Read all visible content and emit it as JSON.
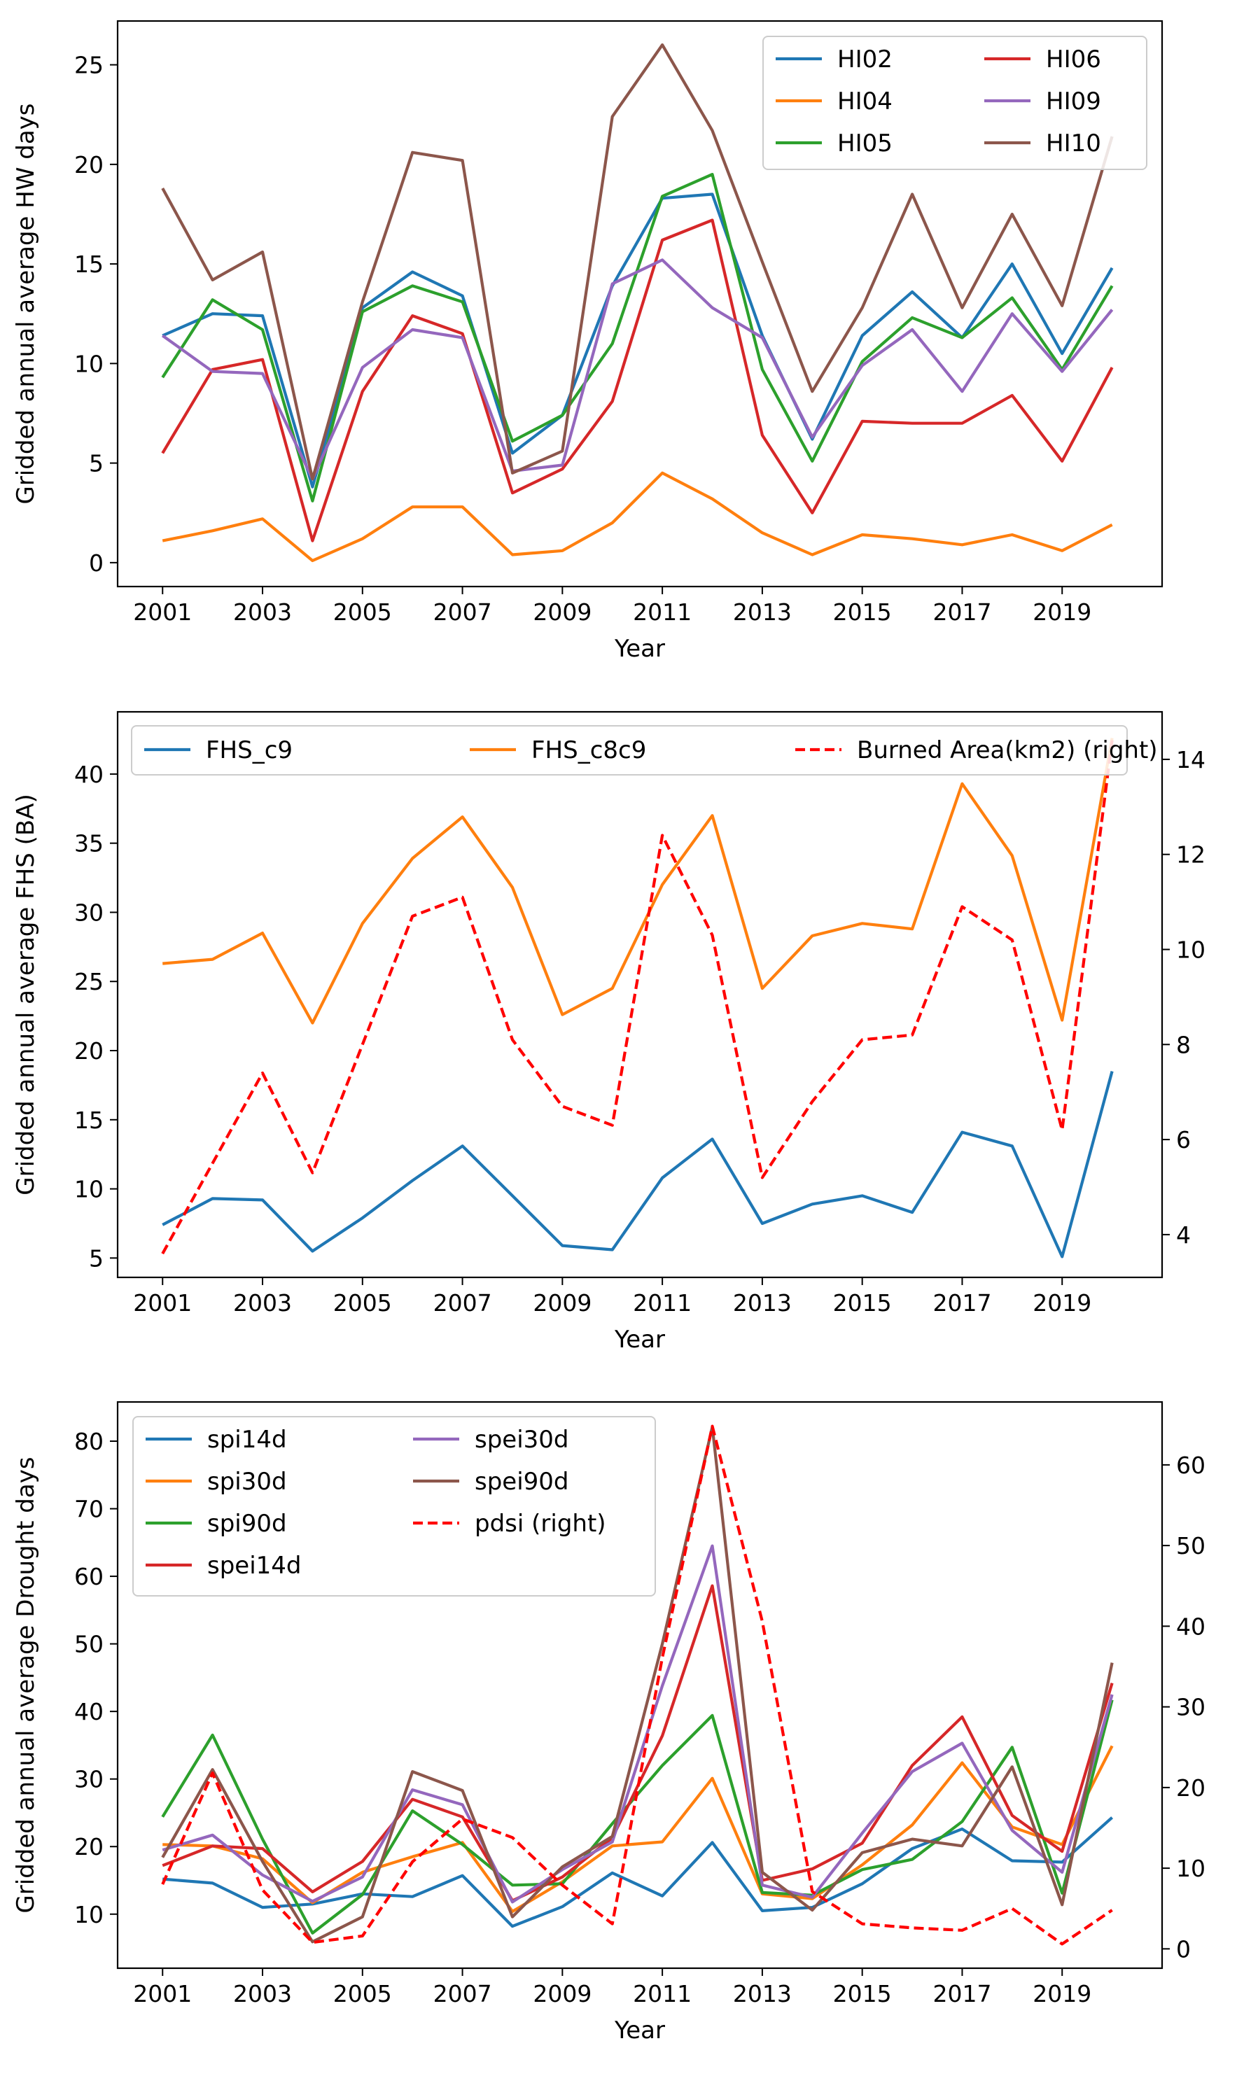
{
  "chart_data": [
    {
      "type": "line",
      "xlabel": "Year",
      "ylabel": "Gridded annual average HW days",
      "x": [
        2001,
        2002,
        2003,
        2004,
        2005,
        2006,
        2007,
        2008,
        2009,
        2010,
        2011,
        2012,
        2013,
        2014,
        2015,
        2016,
        2017,
        2018,
        2019,
        2020
      ],
      "xticks": [
        2001,
        2003,
        2005,
        2007,
        2009,
        2011,
        2013,
        2015,
        2017,
        2019
      ],
      "xlim": [
        2000.1,
        2021.0
      ],
      "ylim": [
        -1.2,
        27.2
      ],
      "yticks": [
        0,
        5,
        10,
        15,
        20,
        25
      ],
      "legend": "upper-right, 2 columns",
      "series": [
        {
          "name": "HI02",
          "color": "#1f77b4",
          "values": [
            11.4,
            12.5,
            12.4,
            3.8,
            12.8,
            14.6,
            13.4,
            5.5,
            7.4,
            13.9,
            18.3,
            18.5,
            11.4,
            6.2,
            11.4,
            13.6,
            11.3,
            15.0,
            10.5,
            14.8
          ]
        },
        {
          "name": "HI04",
          "color": "#ff7f0e",
          "values": [
            1.1,
            1.6,
            2.2,
            0.1,
            1.2,
            2.8,
            2.8,
            0.4,
            0.6,
            2.0,
            4.5,
            3.2,
            1.5,
            0.4,
            1.4,
            1.2,
            0.9,
            1.4,
            0.6,
            1.9
          ]
        },
        {
          "name": "HI05",
          "color": "#2ca02c",
          "values": [
            9.3,
            13.2,
            11.7,
            3.1,
            12.6,
            13.9,
            13.1,
            6.1,
            7.4,
            11.0,
            18.4,
            19.5,
            9.7,
            5.1,
            10.1,
            12.3,
            11.3,
            13.3,
            9.7,
            13.9
          ]
        },
        {
          "name": "HI06",
          "color": "#d62728",
          "values": [
            5.5,
            9.7,
            10.2,
            1.1,
            8.6,
            12.4,
            11.5,
            3.5,
            4.7,
            8.1,
            16.2,
            17.2,
            6.4,
            2.5,
            7.1,
            7.0,
            7.0,
            8.4,
            5.1,
            9.8
          ]
        },
        {
          "name": "HI09",
          "color": "#9467bd",
          "values": [
            11.4,
            9.6,
            9.5,
            4.2,
            9.8,
            11.7,
            11.3,
            4.6,
            4.9,
            14.0,
            15.2,
            12.8,
            11.3,
            6.3,
            9.9,
            11.7,
            8.6,
            12.5,
            9.6,
            12.7
          ]
        },
        {
          "name": "HI10",
          "color": "#8c564b",
          "values": [
            18.8,
            14.2,
            15.6,
            4.2,
            13.1,
            20.6,
            20.2,
            4.5,
            5.6,
            22.4,
            26.0,
            21.7,
            15.1,
            8.6,
            12.8,
            18.5,
            12.8,
            17.5,
            12.9,
            21.4
          ]
        }
      ]
    },
    {
      "type": "line",
      "xlabel": "Year",
      "ylabel": "Gridded annual average FHS (BA)",
      "x": [
        2001,
        2002,
        2003,
        2004,
        2005,
        2006,
        2007,
        2008,
        2009,
        2010,
        2011,
        2012,
        2013,
        2014,
        2015,
        2016,
        2017,
        2018,
        2019,
        2020
      ],
      "xticks": [
        2001,
        2003,
        2005,
        2007,
        2009,
        2011,
        2013,
        2015,
        2017,
        2019
      ],
      "xlim": [
        2000.1,
        2021.0
      ],
      "ylim": [
        3.6,
        44.5
      ],
      "yticks": [
        5,
        10,
        15,
        20,
        25,
        30,
        35,
        40
      ],
      "y2lim": [
        3.1,
        15.0
      ],
      "y2ticks": [
        4,
        6,
        8,
        10,
        12,
        14
      ],
      "legend": "top, 3 columns",
      "series": [
        {
          "name": "FHS_c9",
          "color": "#1f77b4",
          "axis": "left",
          "values": [
            7.4,
            9.3,
            9.2,
            5.5,
            7.9,
            10.6,
            13.1,
            9.5,
            5.9,
            5.6,
            10.8,
            13.6,
            7.5,
            8.9,
            9.5,
            8.3,
            14.1,
            13.1,
            5.1,
            18.5
          ]
        },
        {
          "name": "FHS_c8c9",
          "color": "#ff7f0e",
          "axis": "left",
          "values": [
            26.3,
            26.6,
            28.5,
            22.0,
            29.2,
            33.9,
            36.9,
            31.8,
            22.6,
            24.5,
            32.0,
            37.0,
            24.5,
            28.3,
            29.2,
            28.8,
            39.3,
            34.1,
            22.2,
            42.6
          ]
        },
        {
          "name": "Burned Area(km2) (right)",
          "color": "#ff0000",
          "dash": true,
          "axis": "right",
          "values": [
            3.6,
            5.5,
            7.4,
            5.3,
            8.0,
            10.7,
            11.1,
            8.1,
            6.7,
            6.3,
            12.4,
            10.3,
            5.2,
            6.8,
            8.1,
            8.2,
            10.9,
            10.2,
            6.2,
            14.4
          ]
        }
      ]
    },
    {
      "type": "line",
      "xlabel": "Year",
      "ylabel": "Gridded annual average Drought days",
      "x": [
        2001,
        2002,
        2003,
        2004,
        2005,
        2006,
        2007,
        2008,
        2009,
        2010,
        2011,
        2012,
        2013,
        2014,
        2015,
        2016,
        2017,
        2018,
        2019,
        2020
      ],
      "xticks": [
        2001,
        2003,
        2005,
        2007,
        2009,
        2011,
        2013,
        2015,
        2017,
        2019
      ],
      "xlim": [
        2000.1,
        2021.0
      ],
      "ylim": [
        2.0,
        85.8
      ],
      "yticks": [
        10,
        20,
        30,
        40,
        50,
        60,
        70,
        80
      ],
      "y2lim": [
        -2.4,
        67.8
      ],
      "y2ticks": [
        0,
        10,
        20,
        30,
        40,
        50,
        60
      ],
      "legend": "upper-left, 2 columns",
      "series": [
        {
          "name": "spi14d",
          "color": "#1f77b4",
          "axis": "left",
          "values": [
            15.2,
            14.6,
            11.0,
            11.5,
            13.0,
            12.6,
            15.7,
            8.2,
            11.1,
            16.1,
            12.7,
            20.6,
            10.5,
            11.0,
            14.5,
            19.7,
            22.6,
            17.9,
            17.7,
            24.3
          ]
        },
        {
          "name": "spi30d",
          "color": "#ff7f0e",
          "axis": "left",
          "values": [
            20.3,
            20.1,
            18.2,
            11.7,
            16.2,
            18.5,
            20.6,
            10.4,
            14.8,
            20.1,
            20.7,
            30.1,
            13.0,
            12.3,
            17.3,
            23.2,
            32.4,
            22.9,
            20.3,
            34.9
          ]
        },
        {
          "name": "spi90d",
          "color": "#2ca02c",
          "axis": "left",
          "values": [
            24.4,
            36.5,
            21.1,
            7.2,
            12.9,
            25.3,
            20.3,
            14.3,
            14.5,
            23.4,
            32.0,
            39.4,
            13.2,
            12.8,
            16.6,
            18.1,
            23.7,
            34.7,
            13.1,
            41.7
          ]
        },
        {
          "name": "spei14d",
          "color": "#d62728",
          "axis": "left",
          "values": [
            17.2,
            20.1,
            19.7,
            13.3,
            17.8,
            27.0,
            24.4,
            12.0,
            15.5,
            21.3,
            36.4,
            58.6,
            15.0,
            16.7,
            20.5,
            32.0,
            39.2,
            24.6,
            19.3,
            44.2
          ]
        },
        {
          "name": "spei30d",
          "color": "#9467bd",
          "axis": "left",
          "values": [
            19.5,
            21.7,
            15.8,
            11.9,
            15.5,
            28.4,
            26.2,
            11.8,
            16.6,
            20.7,
            43.8,
            64.5,
            14.3,
            12.5,
            22.0,
            31.1,
            35.3,
            22.4,
            16.2,
            42.5
          ]
        },
        {
          "name": "spei90d",
          "color": "#8c564b",
          "axis": "left",
          "values": [
            18.4,
            31.4,
            17.8,
            5.9,
            9.6,
            31.1,
            28.3,
            9.6,
            17.0,
            21.5,
            50.0,
            82.1,
            16.2,
            10.6,
            19.1,
            21.1,
            20.1,
            31.8,
            11.4,
            47.2
          ]
        },
        {
          "name": "pdsi (right)",
          "color": "#ff0000",
          "dash": true,
          "axis": "right",
          "values": [
            8.0,
            21.8,
            7.3,
            0.8,
            1.6,
            10.8,
            16.1,
            13.8,
            7.9,
            3.1,
            36.1,
            64.8,
            40.6,
            7.1,
            3.1,
            2.6,
            2.3,
            5.0,
            0.6,
            4.8
          ]
        }
      ]
    }
  ]
}
